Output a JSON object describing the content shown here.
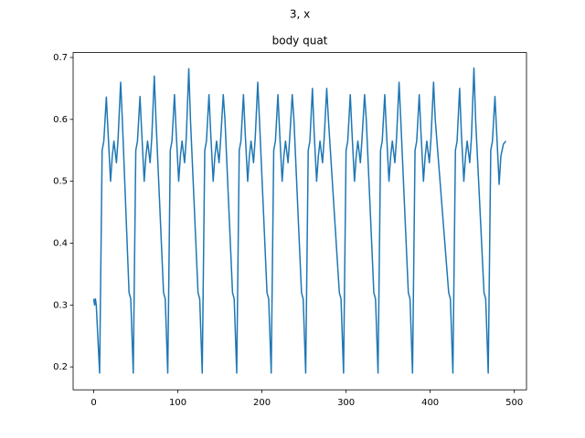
{
  "chart_data": {
    "type": "line",
    "suptitle": "3, x",
    "title": "body quat",
    "x": [
      0,
      1,
      2,
      3,
      7,
      10,
      12,
      15,
      17,
      20,
      22,
      24,
      27,
      29,
      32,
      34,
      42,
      44,
      47,
      50,
      52,
      55,
      57,
      60,
      62,
      64,
      67,
      69,
      72,
      74,
      83,
      85,
      88,
      91,
      93,
      96,
      98,
      101,
      103,
      105,
      108,
      110,
      113,
      115,
      124,
      126,
      129,
      132,
      134,
      137,
      139,
      142,
      144,
      146,
      149,
      151,
      154,
      156,
      165,
      167,
      170,
      173,
      175,
      178,
      180,
      183,
      185,
      187,
      190,
      192,
      195,
      197,
      206,
      208,
      211,
      214,
      216,
      219,
      221,
      224,
      226,
      228,
      231,
      233,
      236,
      238,
      247,
      249,
      252,
      255,
      257,
      260,
      262,
      265,
      267,
      269,
      272,
      274,
      277,
      279,
      292,
      294,
      297,
      300,
      302,
      305,
      307,
      310,
      312,
      314,
      317,
      319,
      322,
      324,
      333,
      335,
      338,
      341,
      343,
      346,
      348,
      351,
      353,
      355,
      358,
      360,
      363,
      365,
      374,
      376,
      379,
      382,
      384,
      387,
      389,
      392,
      394,
      396,
      399,
      401,
      404,
      406,
      422,
      424,
      427,
      430,
      432,
      435,
      437,
      440,
      442,
      444,
      447,
      449,
      452,
      454,
      464,
      466,
      469,
      472,
      474,
      477,
      479,
      482,
      484,
      487,
      490
    ],
    "series": [
      {
        "color": "#1f77b4",
        "values": [
          0.31,
          0.3,
          0.31,
          0.3,
          0.19,
          0.55,
          0.565,
          0.636,
          0.58,
          0.5,
          0.54,
          0.565,
          0.53,
          0.57,
          0.66,
          0.6,
          0.32,
          0.31,
          0.19,
          0.55,
          0.565,
          0.637,
          0.58,
          0.5,
          0.54,
          0.565,
          0.53,
          0.57,
          0.67,
          0.6,
          0.32,
          0.31,
          0.19,
          0.55,
          0.565,
          0.64,
          0.58,
          0.5,
          0.54,
          0.565,
          0.53,
          0.57,
          0.682,
          0.6,
          0.32,
          0.31,
          0.19,
          0.55,
          0.565,
          0.64,
          0.58,
          0.5,
          0.54,
          0.565,
          0.53,
          0.57,
          0.64,
          0.6,
          0.32,
          0.31,
          0.19,
          0.55,
          0.565,
          0.64,
          0.58,
          0.5,
          0.54,
          0.565,
          0.53,
          0.57,
          0.66,
          0.6,
          0.32,
          0.31,
          0.19,
          0.55,
          0.565,
          0.64,
          0.58,
          0.5,
          0.54,
          0.565,
          0.53,
          0.57,
          0.64,
          0.6,
          0.32,
          0.31,
          0.19,
          0.55,
          0.565,
          0.65,
          0.58,
          0.5,
          0.54,
          0.565,
          0.53,
          0.57,
          0.65,
          0.6,
          0.32,
          0.31,
          0.19,
          0.55,
          0.565,
          0.64,
          0.58,
          0.5,
          0.54,
          0.565,
          0.53,
          0.57,
          0.64,
          0.6,
          0.32,
          0.31,
          0.19,
          0.55,
          0.565,
          0.64,
          0.58,
          0.5,
          0.54,
          0.565,
          0.53,
          0.57,
          0.66,
          0.6,
          0.32,
          0.31,
          0.19,
          0.55,
          0.565,
          0.64,
          0.58,
          0.5,
          0.54,
          0.565,
          0.53,
          0.57,
          0.66,
          0.6,
          0.32,
          0.31,
          0.19,
          0.55,
          0.565,
          0.65,
          0.58,
          0.5,
          0.54,
          0.565,
          0.53,
          0.57,
          0.683,
          0.6,
          0.32,
          0.31,
          0.19,
          0.55,
          0.565,
          0.637,
          0.58,
          0.495,
          0.54,
          0.56,
          0.565
        ]
      }
    ],
    "xlim": [
      -24.5,
      514.5
    ],
    "xticks": [
      0,
      100,
      200,
      300,
      400,
      500
    ],
    "ylim": [
      0.163,
      0.708
    ],
    "yticks": [
      0.2,
      0.3,
      0.4,
      0.5,
      0.6,
      0.7
    ]
  }
}
